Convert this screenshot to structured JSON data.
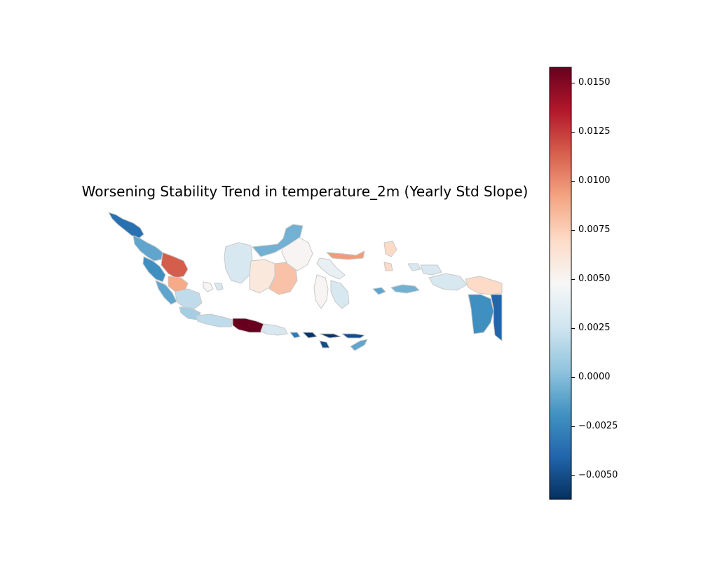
{
  "title": "Worsening Stability Trend in temperature_2m (Yearly Std Slope)",
  "colorbar": {
    "colormap": "RdBu_r",
    "min": -0.0062,
    "max": 0.0158,
    "ticks": [
      {
        "value": 0.015,
        "label": "0.0150"
      },
      {
        "value": 0.0125,
        "label": "0.0125"
      },
      {
        "value": 0.01,
        "label": "0.0100"
      },
      {
        "value": 0.0075,
        "label": "0.0075"
      },
      {
        "value": 0.005,
        "label": "0.0050"
      },
      {
        "value": 0.0025,
        "label": "0.0025"
      },
      {
        "value": 0.0,
        "label": "0.0000"
      },
      {
        "value": -0.0025,
        "label": "−0.0025"
      },
      {
        "value": -0.005,
        "label": "−0.0050"
      }
    ],
    "stops": [
      "#053061",
      "#2166ac",
      "#4393c3",
      "#92c5de",
      "#d1e5f0",
      "#f7f7f7",
      "#fddbc7",
      "#f4a582",
      "#d6604d",
      "#b2182b",
      "#67001f"
    ]
  },
  "map": {
    "region": "Indonesia",
    "boundary_color": "#c8c8c8",
    "regions": [
      {
        "name": "Aceh",
        "value": -0.0035
      },
      {
        "name": "North Sumatra",
        "value": -0.001
      },
      {
        "name": "West Sumatra",
        "value": -0.002
      },
      {
        "name": "Riau",
        "value": 0.0115
      },
      {
        "name": "Jambi",
        "value": 0.009
      },
      {
        "name": "Bengkulu",
        "value": -0.001
      },
      {
        "name": "South Sumatra",
        "value": 0.002
      },
      {
        "name": "Lampung",
        "value": 0.001
      },
      {
        "name": "Bangka",
        "value": 0.005
      },
      {
        "name": "Belitung",
        "value": 0.003
      },
      {
        "name": "West Java",
        "value": 0.002
      },
      {
        "name": "Central Java",
        "value": 0.0158
      },
      {
        "name": "East Java",
        "value": 0.003
      },
      {
        "name": "Bali",
        "value": -0.003
      },
      {
        "name": "West Nusa Tenggara",
        "value": -0.006
      },
      {
        "name": "East Nusa Tenggara",
        "value": -0.005
      },
      {
        "name": "Timor",
        "value": -0.001
      },
      {
        "name": "West Kalimantan",
        "value": 0.003
      },
      {
        "name": "Central Kalimantan",
        "value": 0.006
      },
      {
        "name": "South Kalimantan",
        "value": 0.008
      },
      {
        "name": "East Kalimantan",
        "value": 0.005
      },
      {
        "name": "North Kalimantan",
        "value": -0.0005
      },
      {
        "name": "North Sulawesi",
        "value": 0.0095
      },
      {
        "name": "Central Sulawesi",
        "value": 0.004
      },
      {
        "name": "South Sulawesi",
        "value": 0.005
      },
      {
        "name": "Southeast Sulawesi",
        "value": 0.003
      },
      {
        "name": "Maluku North",
        "value": 0.007
      },
      {
        "name": "Maluku",
        "value": 0.003
      },
      {
        "name": "Seram",
        "value": -0.0005
      },
      {
        "name": "Buru",
        "value": -0.001
      },
      {
        "name": "West Papua",
        "value": 0.003
      },
      {
        "name": "Papua Central",
        "value": 0.007
      },
      {
        "name": "Papua South",
        "value": -0.002
      },
      {
        "name": "Papua East",
        "value": -0.004
      }
    ]
  }
}
